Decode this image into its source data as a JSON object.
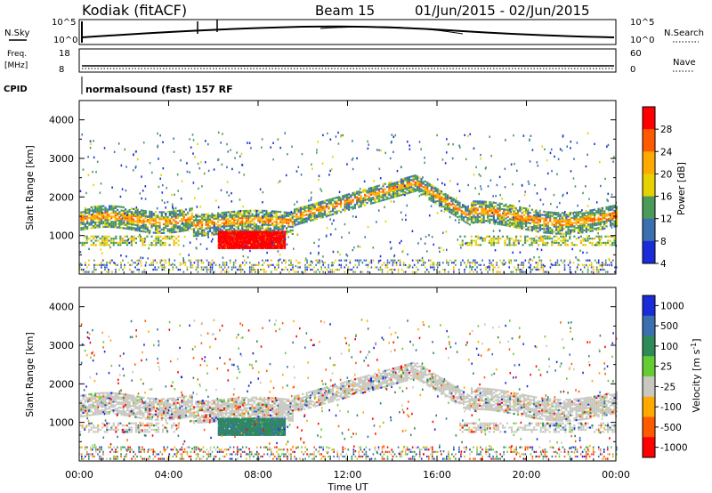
{
  "header": {
    "station": "Kodiak (fitACF)",
    "beam": "Beam 15",
    "date_range": "01/Jun/2015 - 02/Jun/2015"
  },
  "panels": {
    "nsky_label": "N.Sky",
    "nsky_ticks": [
      "10^5",
      "10^0"
    ],
    "nsearch_label": "N.Search",
    "nsearch_ticks": [
      "10^5",
      "10^0"
    ],
    "freq_label": "Freq.",
    "freq_unit": "[MHz]",
    "freq_ticks": [
      "18",
      "8"
    ],
    "nave_label": "Nave",
    "nave_ticks": [
      "60",
      "0"
    ],
    "cpid_label": "CPID",
    "cpid_text": "normalsound (fast) 157 RF"
  },
  "chart_data": [
    {
      "type": "heatmap",
      "name": "power",
      "ylabel": "Slant Range [km]",
      "xlabel": "Time UT",
      "y_ticks": [
        1000,
        2000,
        3000,
        4000
      ],
      "ylim": [
        0,
        4500
      ],
      "x_ticks": [
        "00:00",
        "04:00",
        "08:00",
        "12:00",
        "16:00",
        "20:00",
        "00:00"
      ],
      "xlim_hours": [
        0,
        24
      ],
      "colorbar": {
        "label": "Power [dB]",
        "ticks": [
          "28",
          "24",
          "20",
          "16",
          "12",
          "8",
          "4"
        ],
        "colors": [
          "#ff0000",
          "#ff5a00",
          "#ffaa00",
          "#e6d200",
          "#4a9a5a",
          "#3a6fb0",
          "#1a2bd8"
        ]
      }
    },
    {
      "type": "heatmap",
      "name": "velocity",
      "ylabel": "Slant Range [km]",
      "y_ticks": [
        1000,
        2000,
        3000,
        4000
      ],
      "ylim": [
        0,
        4500
      ],
      "colorbar": {
        "label": "Velocity [m s^-1]",
        "ticks": [
          "1000",
          "500",
          "100",
          "25",
          "-25",
          "-100",
          "-500",
          "-1000"
        ],
        "colors": [
          "#1a2bd8",
          "#3a6fb0",
          "#2e8b57",
          "#66cc33",
          "#c8c8c0",
          "#ffaa00",
          "#ff5a00",
          "#ff0000"
        ]
      }
    }
  ]
}
